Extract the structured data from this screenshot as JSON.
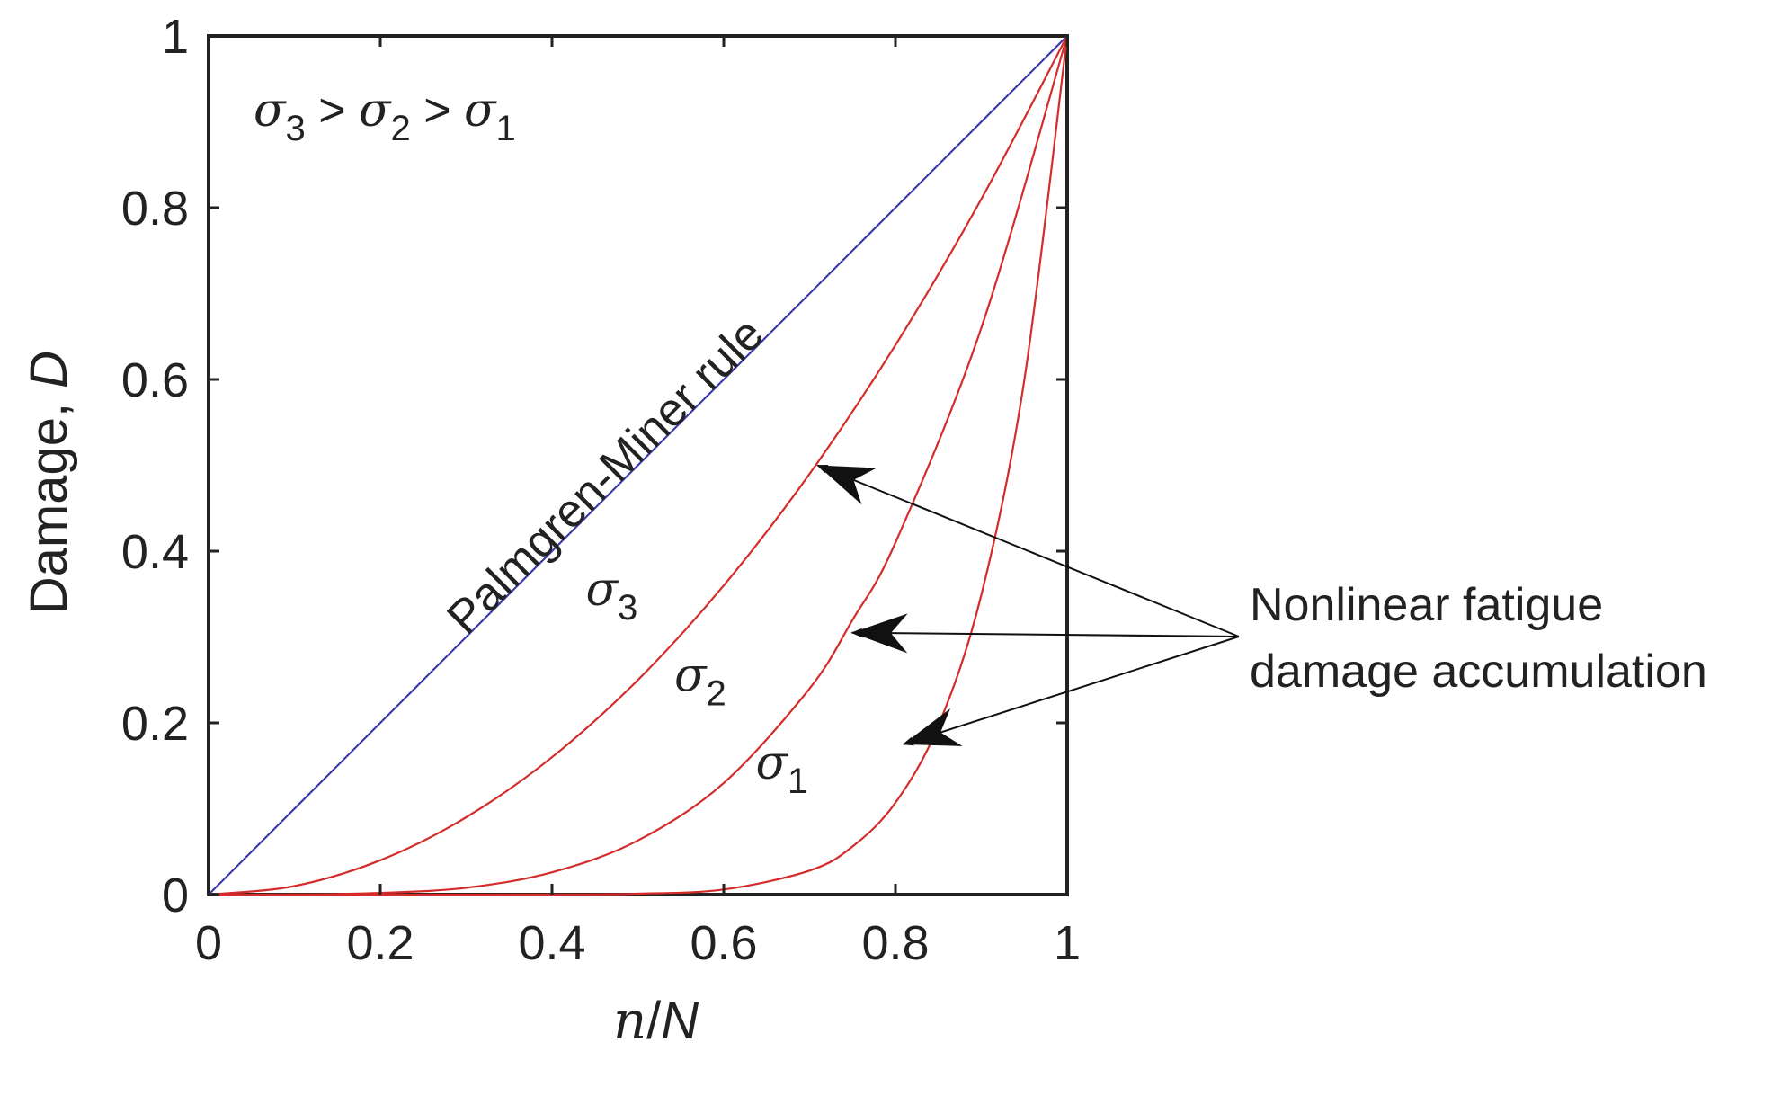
{
  "chart_data": {
    "type": "line",
    "xlabel": {
      "text": "n/N",
      "parts": [
        "n",
        "/",
        "N"
      ]
    },
    "ylabel": {
      "text": "Damage, D",
      "prefix": "Damage, ",
      "symbol": "D"
    },
    "xlim": [
      0,
      1
    ],
    "ylim": [
      0,
      1
    ],
    "x_ticks": [
      0,
      0.2,
      0.4,
      0.6,
      0.8,
      1
    ],
    "y_ticks": [
      0,
      0.2,
      0.4,
      0.6,
      0.8,
      1
    ],
    "x_tick_labels": [
      "0",
      "0.2",
      "0.4",
      "0.6",
      "0.8",
      "1"
    ],
    "y_tick_labels": [
      "0",
      "0.2",
      "0.4",
      "0.6",
      "0.8",
      "1"
    ],
    "grid": false,
    "series": [
      {
        "name": "Palmgren-Miner rule",
        "color": "#3a3ab0",
        "x": [
          0,
          0.2,
          0.4,
          0.6,
          0.8,
          1
        ],
        "y": [
          0,
          0.2,
          0.4,
          0.6,
          0.8,
          1
        ]
      },
      {
        "name": "σ3",
        "color": "#d42b2b",
        "x": [
          0,
          0.1,
          0.2,
          0.3,
          0.4,
          0.5,
          0.6,
          0.7,
          0.8,
          0.9,
          1
        ],
        "y": [
          0,
          0.01,
          0.04,
          0.09,
          0.16,
          0.25,
          0.36,
          0.49,
          0.64,
          0.81,
          1
        ]
      },
      {
        "name": "σ2",
        "color": "#d42b2b",
        "x": [
          0,
          0.1,
          0.2,
          0.3,
          0.4,
          0.5,
          0.6,
          0.7,
          0.75,
          0.8,
          0.9,
          1
        ],
        "y": [
          0,
          0.0001,
          0.002,
          0.008,
          0.026,
          0.063,
          0.13,
          0.24,
          0.32,
          0.41,
          0.66,
          1
        ]
      },
      {
        "name": "σ1",
        "color": "#d42b2b",
        "x": [
          0,
          0.2,
          0.4,
          0.5,
          0.6,
          0.7,
          0.75,
          0.8,
          0.85,
          0.9,
          0.95,
          1
        ],
        "y": [
          0,
          0,
          0.0001,
          0.001,
          0.006,
          0.028,
          0.056,
          0.107,
          0.197,
          0.349,
          0.599,
          1
        ]
      }
    ],
    "annotations": {
      "ordering": {
        "terms": [
          "σ",
          "3",
          " > ",
          "σ",
          "2",
          " > ",
          "σ",
          "1"
        ]
      },
      "line_label": "Palmgren-Miner rule",
      "curve_labels": [
        {
          "sigma": "σ",
          "sub": "3"
        },
        {
          "sigma": "σ",
          "sub": "2"
        },
        {
          "sigma": "σ",
          "sub": "1"
        }
      ],
      "callout": {
        "lines": [
          "Nonlinear fatigue",
          "damage accumulation"
        ],
        "targets": [
          {
            "series": "σ3",
            "x": 0.705,
            "y": 0.5
          },
          {
            "series": "σ2",
            "x": 0.745,
            "y": 0.305
          },
          {
            "series": "σ1",
            "x": 0.805,
            "y": 0.175
          }
        ]
      }
    },
    "colors": {
      "axes": "#222222",
      "linear": "#3a3ab0",
      "nonlinear": "#d42b2b"
    }
  }
}
